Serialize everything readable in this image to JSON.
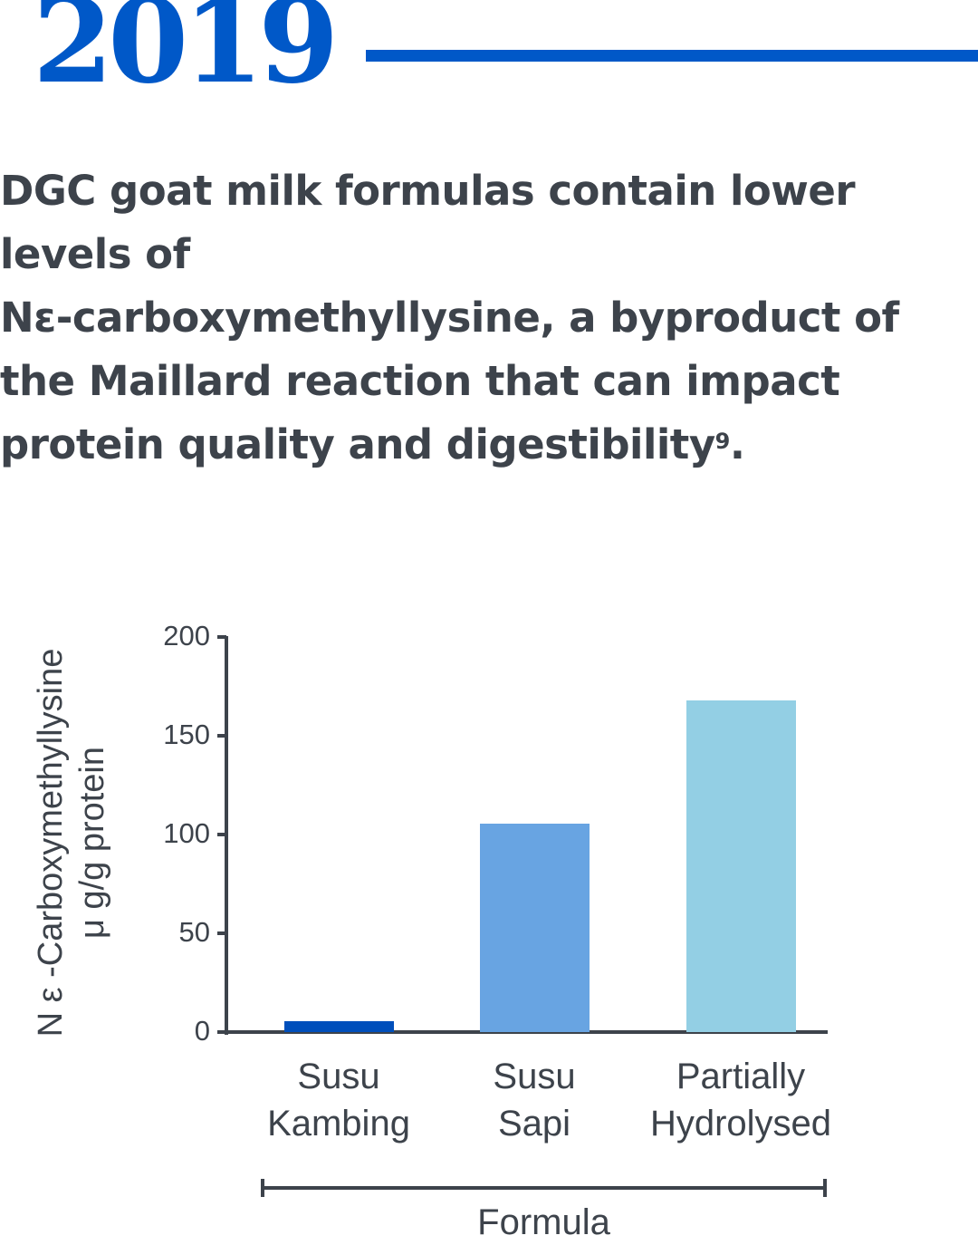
{
  "header": {
    "year": "2019",
    "accent_color": "#0058c8"
  },
  "headline": {
    "line1": "DGC goat milk formulas contain lower",
    "line2": "levels of",
    "line3": "Nε-carboxymethyllysine, a byproduct of",
    "line4": "the Maillard reaction that can impact",
    "line5_text": "protein quality and digestibility",
    "line5_sup": "9",
    "line5_end": ".",
    "text_color": "#3d434b"
  },
  "chart_data": {
    "type": "bar",
    "title": "",
    "categories": [
      "Susu Kambing",
      "Susu Sapi",
      "Partially Hydrolysed"
    ],
    "category_lines": [
      [
        "Susu",
        "Kambing"
      ],
      [
        "Susu",
        "Sapi"
      ],
      [
        "Partially",
        "Hydrolysed"
      ]
    ],
    "values": [
      5.5,
      105.5,
      168
    ],
    "colors": [
      "#004fbb",
      "#68a4e2",
      "#93cfe4"
    ],
    "xlabel": "Formula",
    "ylabel_line1": "N ε -Carboxymethyllysine",
    "ylabel_line2": "μ g/g protein",
    "ylabel": "N ε -Carboxymethyllysine μ g/g protein",
    "ylim": [
      0,
      200
    ],
    "yticks": [
      0,
      50,
      100,
      150,
      200
    ],
    "ytick_labels": [
      "0",
      "50",
      "100",
      "150",
      "200"
    ],
    "grid": false,
    "legend": null,
    "axis_color": "#3d434b"
  }
}
